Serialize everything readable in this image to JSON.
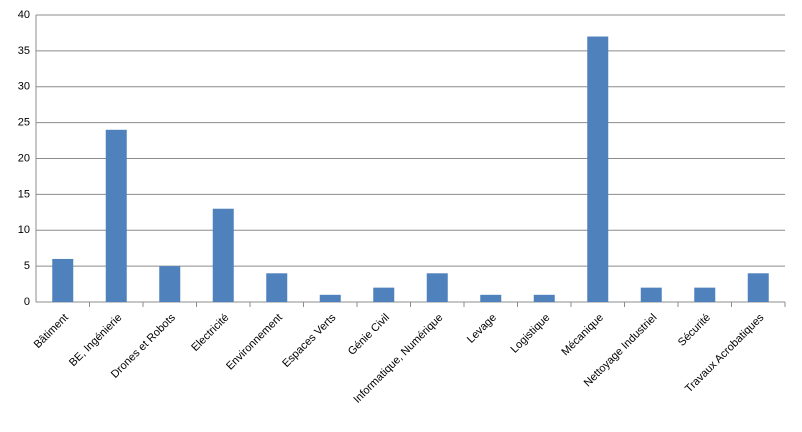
{
  "chart_data": {
    "type": "bar",
    "categories": [
      "Bâtiment",
      "BE, Ingénierie",
      "Drones et Robots",
      "Electricité",
      "Environnement",
      "Espaces Verts",
      "Génie Civil",
      "Informatique, Numérique",
      "Levage",
      "Logistique",
      "Mécanique",
      "Nettoyage Industriel",
      "Sécurité",
      "Travaux Acrobatiques"
    ],
    "values": [
      6,
      24,
      5,
      13,
      4,
      1,
      2,
      4,
      1,
      1,
      37,
      2,
      2,
      4
    ],
    "color": "#4f81bd",
    "ylim": [
      0,
      40
    ],
    "yticks": [
      0,
      5,
      10,
      15,
      20,
      25,
      30,
      35,
      40
    ],
    "grid": true
  }
}
